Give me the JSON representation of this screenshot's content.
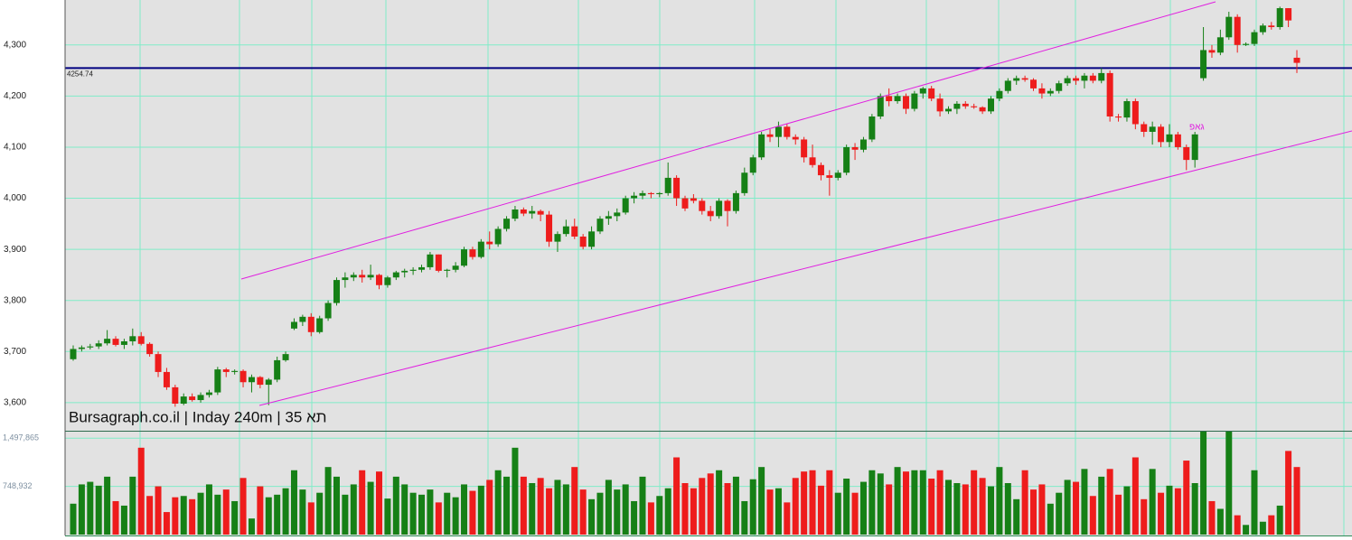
{
  "chart_data": {
    "type": "candlestick",
    "title": "Bursagraph.co.il | Inday 240m | תא 35",
    "annotation": "גאפ",
    "hline": 4254.74,
    "ylim": [
      3545,
      4388
    ],
    "yticks": [
      {
        "value": 3600,
        "label": "3,600"
      },
      {
        "value": 3700,
        "label": "3,700"
      },
      {
        "value": 3800,
        "label": "3,800"
      },
      {
        "value": 3900,
        "label": "3,900"
      },
      {
        "value": 4000,
        "label": "4,000"
      },
      {
        "value": 4100,
        "label": "4,100"
      },
      {
        "value": 4200,
        "label": "4,200"
      },
      {
        "value": 4300,
        "label": "4,300"
      }
    ],
    "volume_lim": [
      0,
      1600000
    ],
    "volume_ticks": [
      {
        "value": 748932,
        "label": "748,932"
      },
      {
        "value": 1497865,
        "label": "1,497,865"
      }
    ],
    "up_color": "#168016",
    "down_color": "#ee1c1c",
    "hline_color": "#000080",
    "channel_color": "#e020e0",
    "grid": true,
    "ohlc": [
      [
        3685,
        3712,
        3682,
        3705
      ],
      [
        3705,
        3712,
        3700,
        3708
      ],
      [
        3708,
        3715,
        3704,
        3710
      ],
      [
        3710,
        3722,
        3705,
        3716
      ],
      [
        3716,
        3742,
        3712,
        3725
      ],
      [
        3725,
        3730,
        3710,
        3713
      ],
      [
        3713,
        3725,
        3705,
        3720
      ],
      [
        3720,
        3745,
        3712,
        3730
      ],
      [
        3730,
        3738,
        3712,
        3715
      ],
      [
        3715,
        3718,
        3690,
        3695
      ],
      [
        3695,
        3700,
        3650,
        3660
      ],
      [
        3660,
        3668,
        3625,
        3630
      ],
      [
        3630,
        3635,
        3592,
        3598
      ],
      [
        3598,
        3618,
        3595,
        3612
      ],
      [
        3612,
        3618,
        3602,
        3605
      ],
      [
        3605,
        3620,
        3600,
        3615
      ],
      [
        3615,
        3625,
        3610,
        3620
      ],
      [
        3620,
        3670,
        3615,
        3665
      ],
      [
        3665,
        3668,
        3650,
        3660
      ],
      [
        3660,
        3665,
        3655,
        3662
      ],
      [
        3662,
        3665,
        3630,
        3640
      ],
      [
        3640,
        3655,
        3620,
        3650
      ],
      [
        3650,
        3652,
        3628,
        3635
      ],
      [
        3635,
        3648,
        3595,
        3645
      ],
      [
        3645,
        3690,
        3640,
        3683
      ],
      [
        3683,
        3700,
        3680,
        3695
      ],
      [
        3745,
        3765,
        3742,
        3758
      ],
      [
        3758,
        3772,
        3750,
        3768
      ],
      [
        3768,
        3775,
        3730,
        3738
      ],
      [
        3738,
        3770,
        3735,
        3765
      ],
      [
        3765,
        3800,
        3760,
        3795
      ],
      [
        3795,
        3845,
        3790,
        3840
      ],
      [
        3840,
        3855,
        3825,
        3845
      ],
      [
        3845,
        3855,
        3838,
        3850
      ],
      [
        3850,
        3860,
        3835,
        3845
      ],
      [
        3845,
        3870,
        3840,
        3850
      ],
      [
        3850,
        3852,
        3822,
        3830
      ],
      [
        3830,
        3848,
        3825,
        3845
      ],
      [
        3845,
        3858,
        3840,
        3855
      ],
      [
        3855,
        3862,
        3845,
        3858
      ],
      [
        3858,
        3865,
        3850,
        3860
      ],
      [
        3860,
        3870,
        3855,
        3865
      ],
      [
        3865,
        3895,
        3860,
        3890
      ],
      [
        3890,
        3890,
        3855,
        3858
      ],
      [
        3858,
        3862,
        3845,
        3860
      ],
      [
        3860,
        3875,
        3855,
        3868
      ],
      [
        3868,
        3905,
        3865,
        3900
      ],
      [
        3900,
        3905,
        3880,
        3885
      ],
      [
        3885,
        3920,
        3882,
        3915
      ],
      [
        3915,
        3935,
        3900,
        3910
      ],
      [
        3910,
        3945,
        3905,
        3940
      ],
      [
        3940,
        3965,
        3935,
        3960
      ],
      [
        3960,
        3985,
        3955,
        3978
      ],
      [
        3978,
        3982,
        3965,
        3970
      ],
      [
        3970,
        3985,
        3960,
        3975
      ],
      [
        3975,
        3978,
        3955,
        3968
      ],
      [
        3968,
        3975,
        3905,
        3915
      ],
      [
        3915,
        3935,
        3895,
        3930
      ],
      [
        3930,
        3958,
        3925,
        3945
      ],
      [
        3945,
        3960,
        3920,
        3925
      ],
      [
        3925,
        3930,
        3900,
        3905
      ],
      [
        3905,
        3945,
        3900,
        3935
      ],
      [
        3935,
        3965,
        3930,
        3960
      ],
      [
        3960,
        3975,
        3948,
        3965
      ],
      [
        3965,
        3980,
        3955,
        3972
      ],
      [
        3972,
        4005,
        3968,
        4000
      ],
      [
        4000,
        4012,
        3990,
        4005
      ],
      [
        4005,
        4015,
        3998,
        4010
      ],
      [
        4010,
        4012,
        4000,
        4008
      ],
      [
        4008,
        4012,
        4002,
        4010
      ],
      [
        4010,
        4070,
        4005,
        4040
      ],
      [
        4040,
        4045,
        3985,
        4000
      ],
      [
        4000,
        4005,
        3975,
        3980
      ],
      [
        4000,
        4008,
        3990,
        3995
      ],
      [
        3995,
        4000,
        3968,
        3975
      ],
      [
        3975,
        3985,
        3955,
        3965
      ],
      [
        3965,
        4000,
        3960,
        3995
      ],
      [
        3995,
        3998,
        3945,
        3975
      ],
      [
        3975,
        4015,
        3970,
        4010
      ],
      [
        4010,
        4060,
        4005,
        4050
      ],
      [
        4050,
        4085,
        4045,
        4080
      ],
      [
        4080,
        4130,
        4075,
        4125
      ],
      [
        4125,
        4135,
        4110,
        4120
      ],
      [
        4120,
        4150,
        4100,
        4140
      ],
      [
        4140,
        4145,
        4115,
        4120
      ],
      [
        4120,
        4125,
        4105,
        4115
      ],
      [
        4115,
        4120,
        4070,
        4080
      ],
      [
        4080,
        4105,
        4060,
        4065
      ],
      [
        4065,
        4070,
        4035,
        4045
      ],
      [
        4045,
        4055,
        4005,
        4040
      ],
      [
        4040,
        4055,
        4035,
        4050
      ],
      [
        4050,
        4105,
        4045,
        4100
      ],
      [
        4100,
        4108,
        4075,
        4095
      ],
      [
        4095,
        4120,
        4090,
        4115
      ],
      [
        4115,
        4165,
        4110,
        4160
      ],
      [
        4160,
        4205,
        4155,
        4200
      ],
      [
        4200,
        4215,
        4180,
        4190
      ],
      [
        4190,
        4205,
        4185,
        4200
      ],
      [
        4200,
        4205,
        4165,
        4175
      ],
      [
        4175,
        4210,
        4170,
        4205
      ],
      [
        4205,
        4218,
        4195,
        4215
      ],
      [
        4215,
        4220,
        4190,
        4195
      ],
      [
        4195,
        4205,
        4160,
        4170
      ],
      [
        4170,
        4180,
        4165,
        4175
      ],
      [
        4175,
        4190,
        4165,
        4185
      ],
      [
        4185,
        4190,
        4175,
        4180
      ],
      [
        4180,
        4185,
        4175,
        4178
      ],
      [
        4178,
        4180,
        4165,
        4170
      ],
      [
        4170,
        4200,
        4165,
        4195
      ],
      [
        4195,
        4215,
        4190,
        4210
      ],
      [
        4210,
        4235,
        4205,
        4230
      ],
      [
        4230,
        4240,
        4222,
        4235
      ],
      [
        4235,
        4240,
        4228,
        4232
      ],
      [
        4232,
        4235,
        4210,
        4215
      ],
      [
        4215,
        4225,
        4195,
        4205
      ],
      [
        4205,
        4215,
        4200,
        4210
      ],
      [
        4210,
        4230,
        4205,
        4225
      ],
      [
        4225,
        4240,
        4220,
        4235
      ],
      [
        4235,
        4240,
        4222,
        4230
      ],
      [
        4230,
        4245,
        4215,
        4240
      ],
      [
        4240,
        4245,
        4225,
        4230
      ],
      [
        4230,
        4255,
        4225,
        4245
      ],
      [
        4245,
        4250,
        4150,
        4160
      ],
      [
        4160,
        4165,
        4150,
        4158
      ],
      [
        4158,
        4195,
        4150,
        4190
      ],
      [
        4190,
        4195,
        4135,
        4145
      ],
      [
        4145,
        4150,
        4120,
        4130
      ],
      [
        4130,
        4150,
        4105,
        4140
      ],
      [
        4140,
        4145,
        4100,
        4110
      ],
      [
        4110,
        4145,
        4100,
        4125
      ],
      [
        4125,
        4130,
        4095,
        4100
      ],
      [
        4100,
        4105,
        4055,
        4075
      ],
      [
        4075,
        4130,
        4060,
        4125
      ],
      [
        4235,
        4335,
        4230,
        4290
      ],
      [
        4290,
        4300,
        4275,
        4285
      ],
      [
        4285,
        4330,
        4280,
        4315
      ],
      [
        4315,
        4365,
        4310,
        4355
      ],
      [
        4355,
        4360,
        4285,
        4300
      ],
      [
        4300,
        4305,
        4298,
        4302
      ],
      [
        4302,
        4330,
        4298,
        4325
      ],
      [
        4325,
        4342,
        4320,
        4338
      ],
      [
        4338,
        4345,
        4330,
        4335
      ],
      [
        4335,
        4375,
        4330,
        4372
      ],
      [
        4372,
        4372,
        4335,
        4348
      ],
      [
        4275,
        4290,
        4245,
        4265
      ]
    ],
    "volume": [
      480000,
      780000,
      820000,
      760000,
      900000,
      520000,
      450000,
      900000,
      1350000,
      600000,
      750000,
      350000,
      580000,
      600000,
      550000,
      650000,
      780000,
      620000,
      700000,
      520000,
      880000,
      250000,
      750000,
      580000,
      620000,
      720000,
      1000000,
      700000,
      500000,
      650000,
      1050000,
      900000,
      620000,
      780000,
      1000000,
      820000,
      980000,
      560000,
      900000,
      780000,
      650000,
      620000,
      700000,
      500000,
      650000,
      580000,
      780000,
      680000,
      760000,
      850000,
      1000000,
      900000,
      1350000,
      900000,
      800000,
      880000,
      720000,
      850000,
      780000,
      1050000,
      700000,
      550000,
      650000,
      850000,
      700000,
      780000,
      520000,
      900000,
      500000,
      600000,
      720000,
      1200000,
      800000,
      720000,
      880000,
      950000,
      1000000,
      800000,
      900000,
      520000,
      860000,
      1050000,
      700000,
      720000,
      500000,
      880000,
      980000,
      1000000,
      760000,
      1000000,
      650000,
      870000,
      650000,
      820000,
      1000000,
      950000,
      780000,
      1050000,
      980000,
      1000000,
      1000000,
      870000,
      1000000,
      850000,
      800000,
      780000,
      1000000,
      880000,
      750000,
      1050000,
      800000,
      550000,
      1000000,
      700000,
      780000,
      480000,
      650000,
      850000,
      820000,
      1020000,
      600000,
      900000,
      1020000,
      620000,
      750000,
      1200000,
      550000,
      1020000,
      650000,
      760000,
      720000,
      1150000,
      800000,
      1600000,
      520000,
      400000,
      1600000,
      300000,
      150000,
      1000000,
      200000,
      300000,
      450000,
      1300000,
      1050000
    ]
  }
}
